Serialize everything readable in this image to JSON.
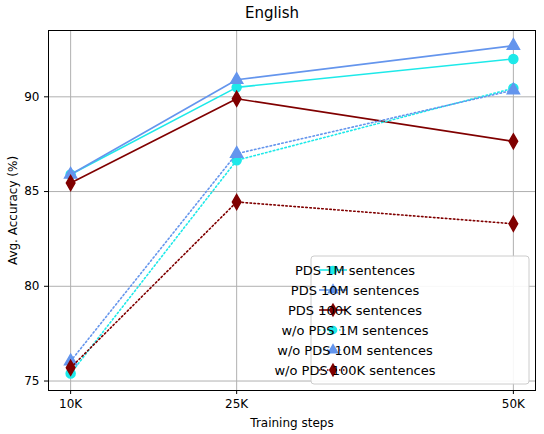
{
  "chart_data": {
    "type": "line",
    "title": "English",
    "x_label": "Training steps",
    "y_label": "Avg. Accuracy (%)",
    "x": [
      10000,
      25000,
      50000
    ],
    "xlim": [
      8000,
      52000
    ],
    "xticks": [
      {
        "value": 10000,
        "label": "10K"
      },
      {
        "value": 25000,
        "label": "25K"
      },
      {
        "value": 50000,
        "label": "50K"
      }
    ],
    "ylim": [
      74.5,
      93.5
    ],
    "yticks": [
      75,
      80,
      85,
      90
    ],
    "grid": true,
    "legend": "lower right",
    "series": [
      {
        "name": "PDS 1M sentences",
        "color": "#1de9e9",
        "marker": "circle",
        "line_style": "solid",
        "values": [
          85.9,
          90.5,
          92.0
        ]
      },
      {
        "name": "PDS 10M sentences",
        "color": "#6495ed",
        "marker": "triangle",
        "line_style": "solid",
        "values": [
          85.9,
          90.9,
          92.7
        ]
      },
      {
        "name": "PDS 100K sentences",
        "color": "#800000",
        "marker": "diamond",
        "line_style": "solid",
        "values": [
          85.45,
          89.9,
          87.65
        ]
      },
      {
        "name": "w/o PDS 1M sentences",
        "color": "#1de9e9",
        "marker": "circle",
        "line_style": "dotted",
        "values": [
          75.4,
          86.65,
          90.45
        ]
      },
      {
        "name": "w/o PDS 10M sentences",
        "color": "#6495ed",
        "marker": "triangle",
        "line_style": "dotted",
        "values": [
          76.05,
          87.0,
          90.35
        ]
      },
      {
        "name": "w/o PDS 100K sentences",
        "color": "#800000",
        "marker": "diamond",
        "line_style": "dotted",
        "values": [
          75.7,
          84.45,
          83.3
        ]
      }
    ]
  }
}
